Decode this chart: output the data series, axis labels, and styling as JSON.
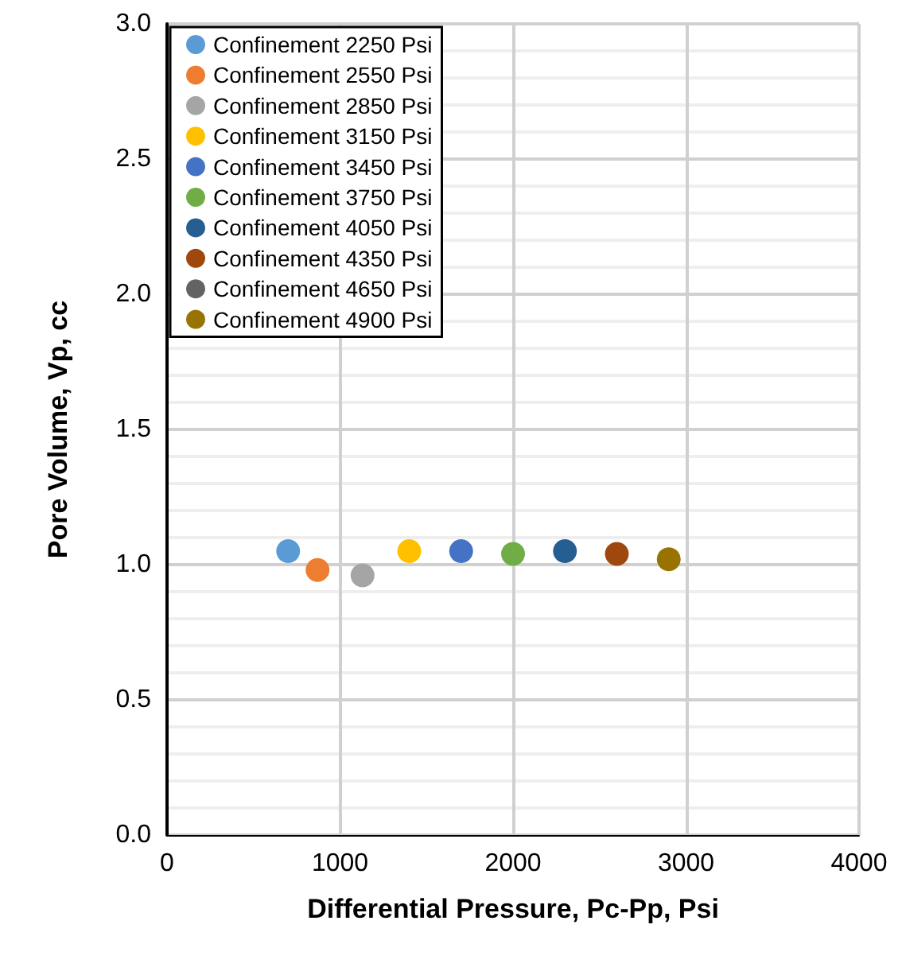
{
  "chart_data": {
    "type": "scatter",
    "xlabel": "Differential Pressure, Pc-Pp, Psi",
    "ylabel": "Pore Volume, Vp, cc",
    "xlim": [
      0,
      4000
    ],
    "xticks": [
      0,
      1000,
      2000,
      3000,
      4000
    ],
    "ylim": [
      0,
      3.0
    ],
    "yticks": [
      {
        "value": 0,
        "label": "0.0"
      },
      0.5,
      {
        "value": 1,
        "label": "1.0"
      },
      1.5,
      {
        "value": 2,
        "label": "2.0"
      },
      2.5,
      {
        "value": 3,
        "label": "3.0"
      }
    ],
    "grid": true,
    "legend": "top left",
    "marker": "circle",
    "series": [
      {
        "name": "Confinement 2250 Psi",
        "color": "#5b9bd5",
        "x": [
          700
        ],
        "values": [
          1.05
        ]
      },
      {
        "name": "Confinement 2550 Psi",
        "color": "#ed7d31",
        "x": [
          870
        ],
        "values": [
          0.98
        ]
      },
      {
        "name": "Confinement 2850 Psi",
        "color": "#a5a5a5",
        "x": [
          1130
        ],
        "values": [
          0.96
        ]
      },
      {
        "name": "Confinement 3150 Psi",
        "color": "#ffc000",
        "x": [
          1400
        ],
        "values": [
          1.05
        ]
      },
      {
        "name": "Confinement 3450 Psi",
        "color": "#4472c4",
        "x": [
          1700
        ],
        "values": [
          1.05
        ]
      },
      {
        "name": "Confinement 3750 Psi",
        "color": "#70ad47",
        "x": [
          2000
        ],
        "values": [
          1.04
        ]
      },
      {
        "name": "Confinement 4050 Psi",
        "color": "#255e91",
        "x": [
          2300
        ],
        "values": [
          1.05
        ]
      },
      {
        "name": "Confinement 4350 Psi",
        "color": "#9e480e",
        "x": [
          2600
        ],
        "values": [
          1.04
        ]
      },
      {
        "name": "Confinement 4650 Psi",
        "color": "#636363",
        "x": [
          null
        ],
        "values": [
          null
        ]
      },
      {
        "name": "Confinement 4900 Psi",
        "color": "#997300",
        "x": [
          2900
        ],
        "values": [
          1.02
        ]
      }
    ]
  }
}
